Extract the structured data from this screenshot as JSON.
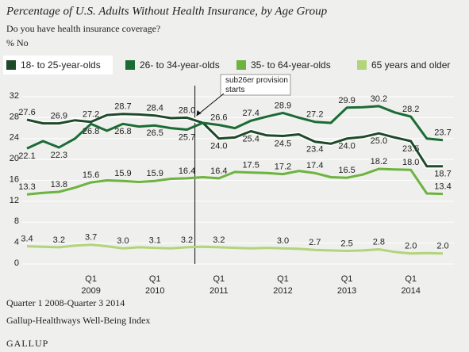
{
  "chart_data": {
    "type": "line",
    "title": "Percentage of U.S. Adults Without Health Insurance, by Age Group",
    "subtitle": "Do you have health insurance coverage?",
    "y_label": "% No",
    "categories": [
      null,
      null,
      null,
      null,
      "Q1",
      null,
      null,
      null,
      "Q1",
      null,
      null,
      null,
      "Q1",
      null,
      null,
      null,
      "Q1",
      null,
      null,
      null,
      "Q1",
      null,
      null,
      null,
      "Q1",
      null,
      null
    ],
    "category_years": [
      null,
      null,
      null,
      null,
      "2009",
      null,
      null,
      null,
      "2010",
      null,
      null,
      null,
      "2011",
      null,
      null,
      null,
      "2012",
      null,
      null,
      null,
      "2013",
      null,
      null,
      null,
      "2014",
      null,
      null
    ],
    "ylim": [
      0,
      32
    ],
    "yticks": [
      0,
      4,
      8,
      12,
      16,
      20,
      24,
      28,
      32
    ],
    "grid": true,
    "annotation": "sub26er provision starts",
    "series": [
      {
        "name": "18- to 25-year-olds",
        "color": "#1f4a2a",
        "halo": true,
        "values": [
          27.6,
          26.9,
          26.9,
          27.5,
          27.2,
          28.5,
          28.7,
          28.6,
          28.4,
          27.9,
          28.0,
          27.0,
          24.0,
          24.2,
          25.4,
          24.6,
          24.5,
          24.8,
          23.4,
          23.0,
          24.0,
          24.3,
          25.0,
          24.2,
          23.5,
          18.7,
          18.7
        ],
        "value_labels": [
          "27.6",
          null,
          "26.9",
          null,
          "27.2",
          null,
          "28.7",
          null,
          "28.4",
          null,
          "28.0",
          null,
          "24.0",
          null,
          "25.4",
          null,
          "24.5",
          null,
          "23.4",
          null,
          "24.0",
          null,
          "25.0",
          null,
          "23.5",
          null,
          "18.7"
        ]
      },
      {
        "name": "26- to 34-year-olds",
        "color": "#1b6b34",
        "values": [
          22.1,
          23.5,
          22.3,
          24.0,
          26.8,
          25.5,
          26.8,
          26.3,
          26.5,
          26.0,
          25.7,
          27.0,
          26.6,
          26.0,
          27.4,
          28.2,
          28.9,
          28.0,
          27.2,
          27.0,
          29.9,
          30.0,
          30.2,
          29.0,
          28.2,
          24.0,
          23.7
        ],
        "value_labels": [
          "22.1",
          null,
          "22.3",
          null,
          "26.8",
          null,
          "26.8",
          null,
          "26.5",
          null,
          "25.7",
          null,
          "26.6",
          null,
          "27.4",
          null,
          "28.9",
          null,
          "27.2",
          null,
          "29.9",
          null,
          "30.2",
          null,
          "28.2",
          null,
          "23.7"
        ]
      },
      {
        "name": "35- to 64-year-olds",
        "color": "#6db33f",
        "values": [
          13.3,
          13.6,
          13.8,
          14.6,
          15.6,
          16.0,
          15.9,
          15.7,
          15.9,
          16.3,
          16.4,
          16.6,
          16.4,
          17.6,
          17.5,
          17.4,
          17.2,
          17.8,
          17.4,
          16.6,
          16.5,
          17.1,
          18.2,
          18.1,
          18.0,
          13.5,
          13.4
        ],
        "value_labels": [
          "13.3",
          null,
          "13.8",
          null,
          "15.6",
          null,
          "15.9",
          null,
          "15.9",
          null,
          "16.4",
          null,
          "16.4",
          null,
          "17.5",
          null,
          "17.2",
          null,
          "17.4",
          null,
          "16.5",
          null,
          "18.2",
          null,
          "18.0",
          null,
          "13.4"
        ]
      },
      {
        "name": "65 years and older",
        "color": "#b3d47a",
        "values": [
          3.4,
          3.3,
          3.2,
          3.5,
          3.7,
          3.4,
          3.0,
          3.2,
          3.1,
          3.0,
          3.2,
          3.3,
          3.2,
          3.1,
          3.0,
          3.1,
          3.0,
          2.9,
          2.7,
          2.6,
          2.5,
          2.6,
          2.8,
          2.3,
          2.0,
          2.1,
          2.0
        ],
        "value_labels": [
          "3.4",
          null,
          "3.2",
          null,
          "3.7",
          null,
          "3.0",
          null,
          "3.1",
          null,
          "3.2",
          null,
          "3.2",
          null,
          null,
          null,
          "3.0",
          null,
          "2.7",
          null,
          "2.5",
          null,
          "2.8",
          null,
          "2.0",
          null,
          "2.0"
        ]
      }
    ],
    "source_period": "Quarter 1 2008-Quarter 3 2014",
    "source": "Gallup-Healthways Well-Being Index",
    "brand": "GALLUP"
  }
}
